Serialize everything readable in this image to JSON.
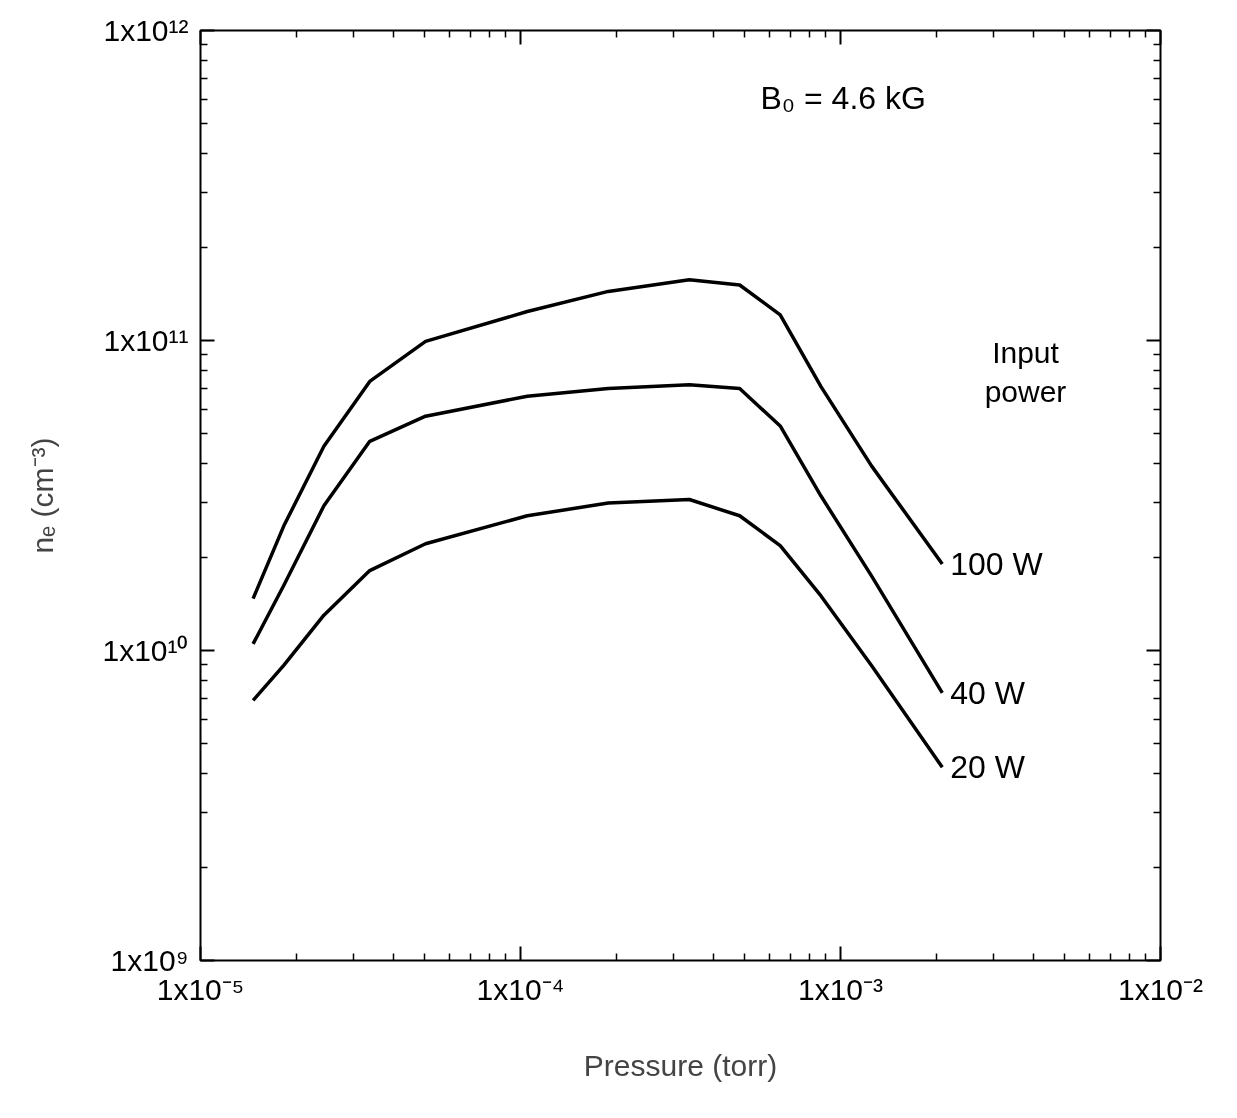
{
  "chart_data": {
    "type": "line",
    "xlabel": "Pressure (torr)",
    "ylabel": "nₑ (cm⁻³)",
    "legend_title": "Input power",
    "annotations": [
      "B₀ = 4.6 kG"
    ],
    "log": "xy",
    "grid": false,
    "legend": false,
    "marker": "none",
    "line_style": "solid",
    "xlim": [
      1e-05,
      0.01
    ],
    "ylim": [
      1000000000.0,
      1000000000000.0
    ],
    "xticks": [
      {
        "value": 1e-05,
        "label": "1x10⁻⁵"
      },
      {
        "value": 0.0001,
        "label": "1x10⁻⁴"
      },
      {
        "value": 0.001,
        "label": "1x10⁻³"
      },
      {
        "value": 0.01,
        "label": "1x10⁻²"
      }
    ],
    "yticks": [
      {
        "value": 1000000000.0,
        "label": "1x10⁹"
      },
      {
        "value": 10000000000.0,
        "label": "1x10¹⁰"
      },
      {
        "value": 100000000000.0,
        "label": "1x10¹¹"
      },
      {
        "value": 1000000000000.0,
        "label": "1x10¹²"
      }
    ],
    "x": [
      1.46e-05,
      1.82e-05,
      2.43e-05,
      3.38e-05,
      5.05e-05,
      0.000105,
      0.000188,
      0.000337,
      0.000484,
      0.000648,
      0.000869,
      0.00125,
      0.00208
    ],
    "series": [
      {
        "name": "100 W",
        "color": "#000000",
        "values": [
          14700000000.0,
          25200000000.0,
          45600000000.0,
          73800000000.0,
          99300000000.0,
          124000000000.0,
          144000000000.0,
          157000000000.0,
          151000000000.0,
          121000000000.0,
          71000000000.0,
          39400000000.0,
          19000000000.0
        ]
      },
      {
        "name": "40 W",
        "color": "#000000",
        "values": [
          10500000000.0,
          16200000000.0,
          29300000000.0,
          47300000000.0,
          57000000000.0,
          66100000000.0,
          70000000000.0,
          72000000000.0,
          70000000000.0,
          53000000000.0,
          31500000000.0,
          17400000000.0,
          7300000000.0
        ]
      },
      {
        "name": "20 W",
        "color": "#000000",
        "values": [
          6900000000.0,
          8950000000.0,
          13000000000.0,
          18100000000.0,
          22100000000.0,
          27200000000.0,
          29900000000.0,
          30700000000.0,
          27200000000.0,
          21800000000.0,
          15000000000.0,
          8950000000.0,
          4200000000.0
        ]
      }
    ]
  }
}
